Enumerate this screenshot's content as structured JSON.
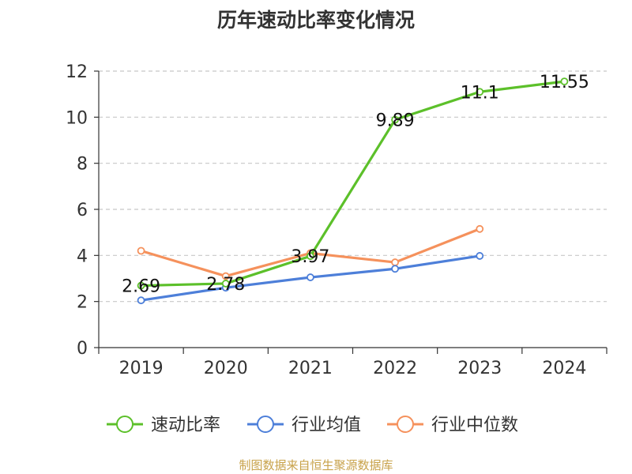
{
  "chart_data": {
    "type": "line",
    "title": "历年速动比率变化情况",
    "categories": [
      "2019",
      "2020",
      "2021",
      "2022",
      "2023",
      "2024"
    ],
    "ylim": [
      0,
      12
    ],
    "yticks": [
      0,
      2,
      4,
      6,
      8,
      10,
      12
    ],
    "grid": true,
    "legend_position": "bottom",
    "series": [
      {
        "name": "速动比率",
        "color": "#5cc02a",
        "values": [
          2.69,
          2.78,
          3.97,
          9.89,
          11.1,
          11.55
        ],
        "labels": [
          "2.69",
          "2.78",
          "3.97",
          "9.89",
          "11.1",
          "11.55"
        ]
      },
      {
        "name": "行业均值",
        "color": "#4d7fd9",
        "values": [
          2.05,
          2.6,
          3.05,
          3.42,
          3.98,
          null
        ]
      },
      {
        "name": "行业中位数",
        "color": "#f5915c",
        "values": [
          4.2,
          3.1,
          4.1,
          3.7,
          5.15,
          null
        ]
      }
    ],
    "source": "制图数据来自恒生聚源数据库"
  }
}
